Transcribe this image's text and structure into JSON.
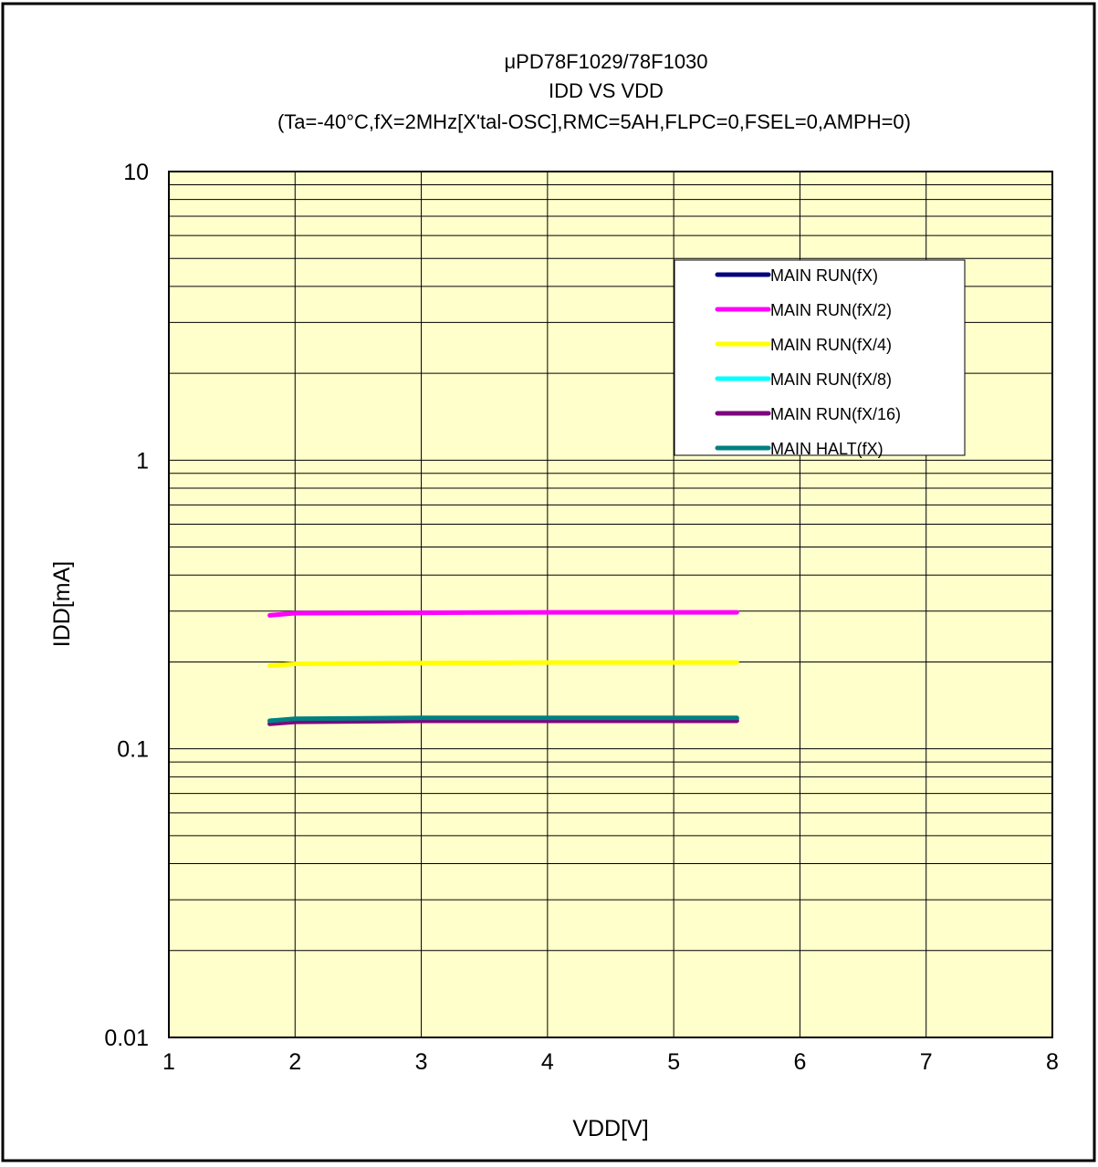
{
  "chart_data": {
    "type": "line",
    "title": "μPD78F1029/78F1030",
    "subtitle": "IDD VS VDD",
    "conditions": "(Ta=-40°C,fX=2MHz[X'tal-OSC],RMC=5AH,FLPC=0,FSEL=0,AMPH=0)",
    "xlabel": "VDD[V]",
    "ylabel": "IDD[mA]",
    "xlim": [
      1,
      8
    ],
    "ylim": [
      0.01,
      10
    ],
    "yscale": "log",
    "x_ticks": [
      "1",
      "2",
      "3",
      "4",
      "5",
      "6",
      "7",
      "8"
    ],
    "y_ticks": [
      "0.01",
      "0.1",
      "1",
      "10"
    ],
    "grid": true,
    "plot_background": "#ffffcc",
    "legend_position": "top-right (inside plot)",
    "series": [
      {
        "name": "MAIN RUN(fX)",
        "color": "#000080",
        "x": [
          1.8,
          2.0,
          3.0,
          4.0,
          5.0,
          5.5
        ],
        "y": [
          0.125,
          0.126,
          0.127,
          0.127,
          0.127,
          0.127
        ]
      },
      {
        "name": "MAIN RUN(fX/2)",
        "color": "#ff00ff",
        "x": [
          1.8,
          2.0,
          3.0,
          4.0,
          5.0,
          5.5
        ],
        "y": [
          0.29,
          0.295,
          0.296,
          0.297,
          0.297,
          0.297
        ]
      },
      {
        "name": "MAIN RUN(fX/4)",
        "color": "#ffff00",
        "x": [
          1.8,
          2.0,
          3.0,
          4.0,
          5.0,
          5.5
        ],
        "y": [
          0.194,
          0.197,
          0.198,
          0.199,
          0.199,
          0.199
        ]
      },
      {
        "name": "MAIN RUN(fX/8)",
        "color": "#00ffff",
        "x": [
          1.8,
          2.0,
          3.0,
          4.0,
          5.0,
          5.5
        ],
        "y": [
          0.125,
          0.126,
          0.127,
          0.127,
          0.127,
          0.127
        ]
      },
      {
        "name": "MAIN RUN(fX/16)",
        "color": "#800080",
        "x": [
          1.8,
          2.0,
          3.0,
          4.0,
          5.0,
          5.5
        ],
        "y": [
          0.122,
          0.124,
          0.125,
          0.125,
          0.125,
          0.125
        ]
      },
      {
        "name": "MAIN HALT(fX)",
        "color": "#008080",
        "x": [
          1.8,
          2.0,
          3.0,
          4.0,
          5.0,
          5.5
        ],
        "y": [
          0.125,
          0.127,
          0.128,
          0.128,
          0.128,
          0.128
        ]
      }
    ]
  }
}
